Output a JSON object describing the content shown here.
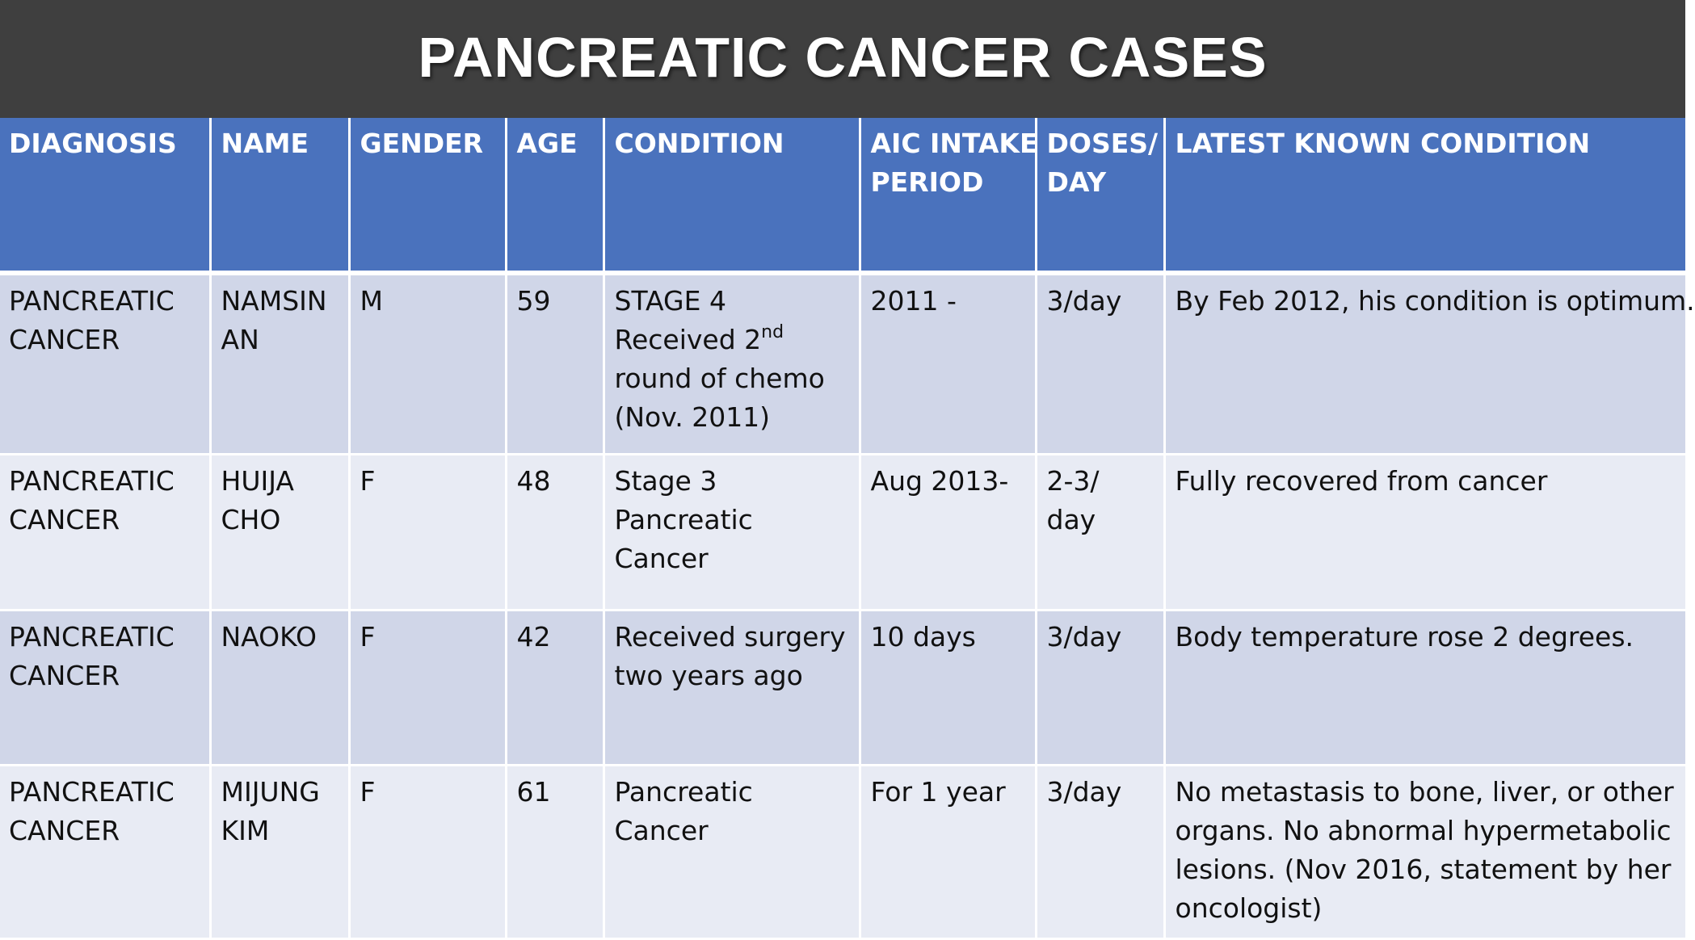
{
  "title": "PANCREATIC CANCER CASES",
  "headers": {
    "diagnosis": [
      "DIAGNOSIS"
    ],
    "name": [
      "NAME"
    ],
    "gender": [
      "GENDER"
    ],
    "age": [
      "AGE"
    ],
    "condition": [
      "CONDITION"
    ],
    "aic_period": [
      "AIC INTAKE",
      "PERIOD"
    ],
    "doses": [
      "DOSES/",
      "DAY"
    ],
    "latest": [
      "LATEST KNOWN CONDITION"
    ]
  },
  "rows": [
    {
      "diagnosis": [
        "PANCREATIC",
        "CANCER"
      ],
      "name": [
        "NAMSIN",
        "AN"
      ],
      "gender": [
        "M"
      ],
      "age": [
        "59"
      ],
      "condition_line1": "STAGE 4",
      "condition_line2_pre": "Received 2",
      "condition_line2_sup": "nd",
      "condition_line3": "round of chemo",
      "condition_line4": "(Nov. 2011)",
      "aic_period": [
        "2011 -"
      ],
      "doses": [
        "3/day"
      ],
      "latest": [
        "By Feb 2012, his condition is optimum."
      ]
    },
    {
      "diagnosis": [
        "PANCREATIC",
        "CANCER"
      ],
      "name": [
        "HUIJA",
        "CHO"
      ],
      "gender": [
        "F"
      ],
      "age": [
        "48"
      ],
      "condition": [
        "Stage 3",
        "Pancreatic",
        "Cancer"
      ],
      "aic_period": [
        "Aug 2013-"
      ],
      "doses": [
        "2-3/",
        "day"
      ],
      "latest": [
        "Fully recovered from cancer"
      ]
    },
    {
      "diagnosis": [
        "PANCREATIC",
        "CANCER"
      ],
      "name": [
        "NAOKO"
      ],
      "gender": [
        "F"
      ],
      "age": [
        "42"
      ],
      "condition": [
        "Received surgery",
        "two years ago"
      ],
      "aic_period": [
        "10 days"
      ],
      "doses": [
        "3/day"
      ],
      "latest": [
        "Body temperature rose 2 degrees."
      ]
    },
    {
      "diagnosis": [
        "PANCREATIC",
        "CANCER"
      ],
      "name": [
        "MIJUNG",
        "KIM"
      ],
      "gender": [
        "F"
      ],
      "age": [
        "61"
      ],
      "condition": [
        "Pancreatic",
        "Cancer"
      ],
      "aic_period": [
        "For 1 year"
      ],
      "doses": [
        "3/day"
      ],
      "latest": [
        "No metastasis to bone, liver, or other",
        "organs.  No abnormal hypermetabolic",
        "lesions. (Nov 2016, statement by her",
        "oncologist)"
      ]
    }
  ]
}
